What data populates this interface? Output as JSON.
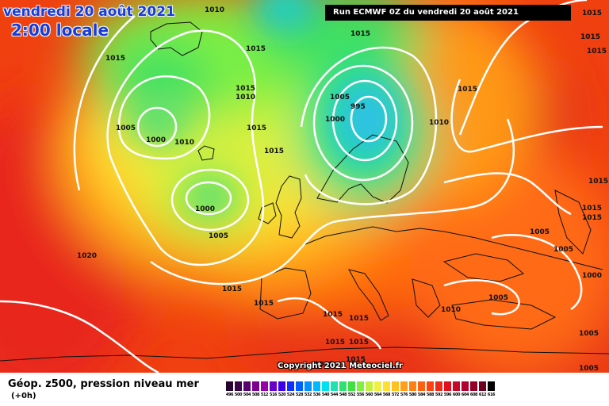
{
  "header": {
    "date_title": "vendredi 20 août 2021",
    "time_title": "2:00 locale",
    "run_info": "Run ECMWF 0Z du vendredi 20 août 2021"
  },
  "footer": {
    "parameter_title": "Géop. z500, pression niveau mer",
    "lead_time": "(+0h)",
    "copyright": "Copyright 2021 Meteociel.fr"
  },
  "scale": {
    "labels": [
      "496",
      "500",
      "504",
      "508",
      "512",
      "516",
      "520",
      "524",
      "528",
      "532",
      "536",
      "540",
      "544",
      "548",
      "552",
      "556",
      "560",
      "564",
      "568",
      "572",
      "576",
      "580",
      "584",
      "588",
      "592",
      "596",
      "600",
      "604",
      "608",
      "612",
      "616"
    ],
    "colors": [
      "#26002e",
      "#3a0049",
      "#5a0070",
      "#7a0090",
      "#9a00a8",
      "#6a00c8",
      "#3a00e6",
      "#1030ff",
      "#0060ff",
      "#0090ff",
      "#00b8ff",
      "#00e0f0",
      "#20e0b0",
      "#30e070",
      "#40e040",
      "#80f040",
      "#c0f040",
      "#f0f040",
      "#ffe030",
      "#ffc020",
      "#ffa018",
      "#ff8010",
      "#ff6010",
      "#ff4010",
      "#f02818",
      "#e01020",
      "#c80828",
      "#b00030",
      "#900028",
      "#700020",
      "#000000"
    ]
  },
  "isobar_labels": [
    {
      "text": "1010"
    },
    {
      "text": "1015"
    },
    {
      "text": "1015"
    },
    {
      "text": "1015"
    },
    {
      "text": "1015"
    },
    {
      "text": "1005"
    },
    {
      "text": "1000"
    },
    {
      "text": "1010"
    },
    {
      "text": "1010"
    },
    {
      "text": "1015"
    },
    {
      "text": "1015"
    },
    {
      "text": "1005"
    },
    {
      "text": "995"
    },
    {
      "text": "1000"
    },
    {
      "text": "1010"
    },
    {
      "text": "1015"
    },
    {
      "text": "1015"
    },
    {
      "text": "1000"
    },
    {
      "text": "1005"
    },
    {
      "text": "1020"
    },
    {
      "text": "1015"
    },
    {
      "text": "1015"
    },
    {
      "text": "1015"
    },
    {
      "text": "1015"
    },
    {
      "text": "1015"
    },
    {
      "text": "1010"
    },
    {
      "text": "1005"
    },
    {
      "text": "1005"
    },
    {
      "text": "1000"
    },
    {
      "text": "1005"
    },
    {
      "text": "1005"
    },
    {
      "text": "1015"
    },
    {
      "text": "1015"
    },
    {
      "text": "1015"
    },
    {
      "text": "1005"
    },
    {
      "text": "1015"
    },
    {
      "text": "1015"
    },
    {
      "text": "1015"
    },
    {
      "text": "1015"
    },
    {
      "text": "1015"
    }
  ]
}
